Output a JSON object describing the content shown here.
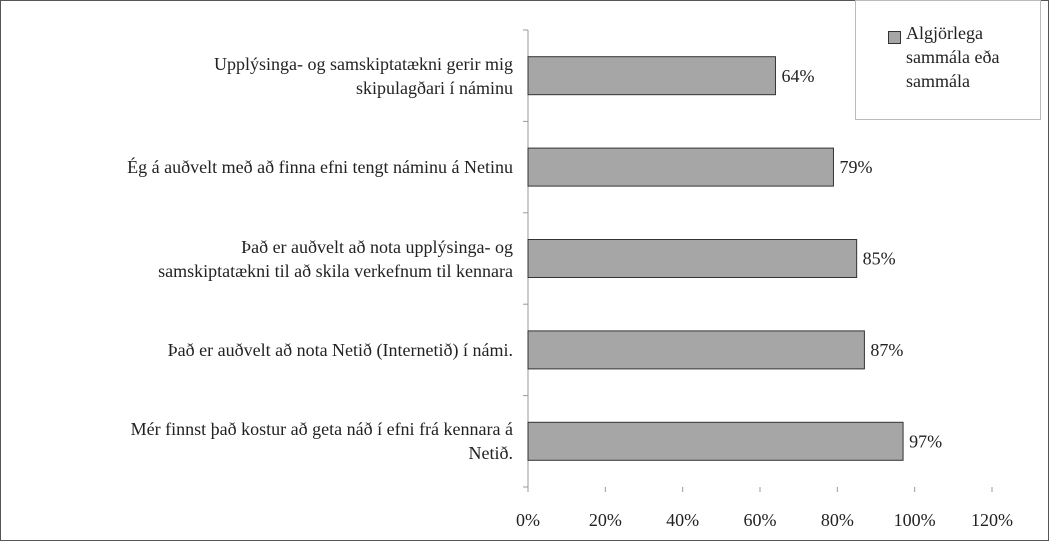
{
  "chart_data": {
    "type": "bar",
    "orientation": "horizontal",
    "categories": [
      "Upplýsinga- og samskiptatækni gerir mig\nskipulagðari í náminu",
      "Ég á auðvelt með að finna efni tengt náminu á Netinu",
      "Það er auðvelt að nota upplýsinga- og\nsamskiptatækni til að skila verkefnum til kennara",
      "Það er auðvelt að nota Netið (Internetið) í námi.",
      "Mér finnst það kostur að geta náð í efni frá kennara á\nNetið."
    ],
    "series": [
      {
        "name": "Algjörlega sammála eða sammála",
        "color": "#a6a6a6",
        "values": [
          64,
          79,
          85,
          87,
          97
        ],
        "value_labels": [
          "64%",
          "79%",
          "85%",
          "87%",
          "97%"
        ]
      }
    ],
    "xlim": [
      0,
      120
    ],
    "xticks": [
      {
        "value": 0,
        "label": "0%"
      },
      {
        "value": 20,
        "label": "20%"
      },
      {
        "value": 40,
        "label": "40%"
      },
      {
        "value": 60,
        "label": "60%"
      },
      {
        "value": 80,
        "label": "80%"
      },
      {
        "value": 100,
        "label": "100%"
      },
      {
        "value": 120,
        "label": "120%"
      }
    ],
    "legend": "top-right"
  }
}
